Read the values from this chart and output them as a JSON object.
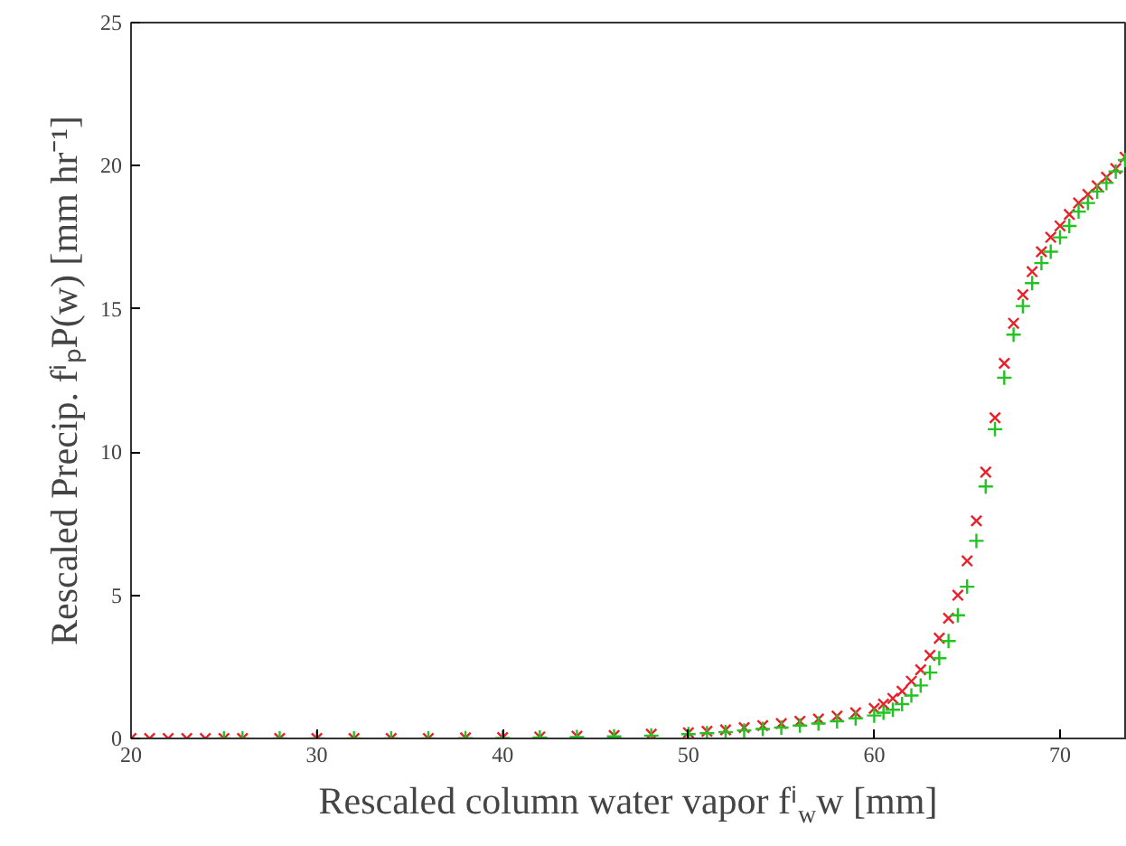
{
  "chart_data": {
    "type": "scatter",
    "xlabel": "Rescaled column water vapor fⁱ$_{w}$w [mm]",
    "ylabel": "Rescaled Precip. fⁱₚP(w) [mm hr⁻¹]",
    "xlim": [
      20,
      73.6
    ],
    "ylim": [
      0,
      25
    ],
    "xticks": [
      20,
      30,
      40,
      50,
      60,
      70
    ],
    "yticks": [
      0,
      5,
      10,
      15,
      20,
      25
    ],
    "grid": false,
    "series": [
      {
        "color": "#e8202a",
        "marker": "x",
        "x": [
          20,
          21,
          22,
          23,
          24,
          25,
          26,
          28,
          30,
          32,
          34,
          36,
          38,
          40,
          42,
          44,
          46,
          48,
          50,
          51,
          52,
          53,
          54,
          55,
          56,
          57,
          58,
          59,
          60,
          60.5,
          61,
          61.5,
          62,
          62.5,
          63,
          63.5,
          64,
          64.5,
          65,
          65.5,
          66,
          66.5,
          67,
          67.5,
          68,
          68.5,
          69,
          69.5,
          70,
          70.5,
          71,
          71.5,
          72,
          72.5,
          73,
          73.5
        ],
        "values": [
          0,
          0,
          0,
          0,
          0,
          0,
          0,
          0,
          0,
          0,
          0,
          0,
          0.02,
          0.03,
          0.05,
          0.08,
          0.1,
          0.15,
          0.2,
          0.25,
          0.3,
          0.38,
          0.45,
          0.52,
          0.6,
          0.68,
          0.78,
          0.9,
          1.05,
          1.2,
          1.4,
          1.65,
          2.0,
          2.4,
          2.9,
          3.5,
          4.2,
          5.0,
          6.2,
          7.6,
          9.3,
          11.2,
          13.1,
          14.5,
          15.5,
          16.3,
          17.0,
          17.5,
          17.9,
          18.3,
          18.7,
          19.0,
          19.3,
          19.6,
          19.9,
          20.3
        ]
      },
      {
        "color": "#22c422",
        "marker": "cross",
        "x": [
          25,
          26,
          28,
          30,
          32,
          34,
          36,
          38,
          40,
          42,
          44,
          46,
          48,
          50,
          51,
          52,
          53,
          54,
          55,
          56,
          57,
          58,
          59,
          60,
          60.5,
          61,
          61.5,
          62,
          62.5,
          63,
          63.5,
          64,
          64.5,
          65,
          65.5,
          66,
          66.5,
          67,
          67.5,
          68,
          68.5,
          69,
          69.5,
          70,
          70.5,
          71,
          71.5,
          72,
          72.5,
          73,
          73.5
        ],
        "values": [
          0,
          0,
          0,
          0,
          0,
          0,
          0,
          0.01,
          0.02,
          0.03,
          0.05,
          0.07,
          0.1,
          0.15,
          0.18,
          0.22,
          0.28,
          0.33,
          0.38,
          0.45,
          0.52,
          0.6,
          0.7,
          0.8,
          0.9,
          1.0,
          1.2,
          1.5,
          1.85,
          2.3,
          2.8,
          3.4,
          4.3,
          5.3,
          6.9,
          8.8,
          10.8,
          12.6,
          14.1,
          15.1,
          15.9,
          16.6,
          17.0,
          17.5,
          17.9,
          18.4,
          18.7,
          19.1,
          19.4,
          19.8,
          20.2
        ]
      }
    ]
  }
}
